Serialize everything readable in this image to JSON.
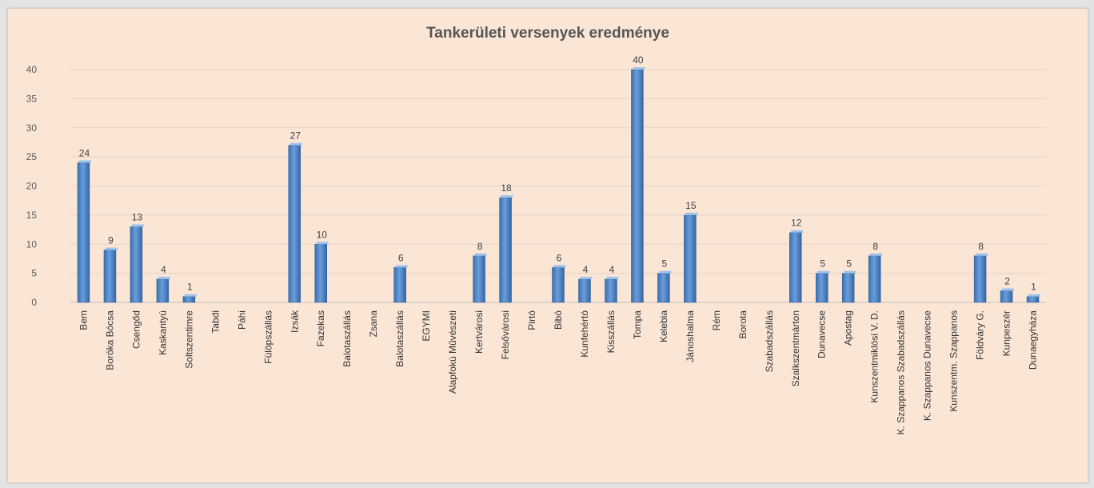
{
  "chart_data": {
    "type": "bar",
    "title": "Tankerületi versenyek eredménye",
    "xlabel": "",
    "ylabel": "",
    "ylim": [
      0,
      40
    ],
    "yticks": [
      0,
      5,
      10,
      15,
      20,
      25,
      30,
      35,
      40
    ],
    "grid": true,
    "legend": "none",
    "bar_color": "#4f86c6",
    "categories": [
      "Bem",
      "Boróka Bócsa",
      "Csengőd",
      "Kaskantyú",
      "Soltszentimre",
      "Tabdi",
      "Páhi",
      "Fülöpszállás",
      "Izsák",
      "Fazekas",
      "Balotaszállás",
      "Zsana",
      "Balotaszállás",
      "EGYMI",
      "Alapfokú Művészeti",
      "Kertvárosi",
      "Felsővárosi",
      "Pirtó",
      "Bibó",
      "Kunfehértó",
      "Kisszállás",
      "Tompa",
      "Kelebia",
      "Jánoshalma",
      "Rém",
      "Borota",
      "Szabadszállás",
      "Szalkszentmárton",
      "Dunavecse",
      "Apostag",
      "Kunszentmiklósi V. D.",
      "K. Szappanos Szabadszállás",
      "K. Szappanos Dunavecse",
      "Kunszentm. Szappanos",
      "Földváry G.",
      "Kunpeszér",
      "Dunaegyháza"
    ],
    "values": [
      24,
      9,
      13,
      4,
      1,
      0,
      0,
      0,
      27,
      10,
      0,
      0,
      6,
      0,
      0,
      8,
      18,
      0,
      6,
      4,
      4,
      40,
      5,
      15,
      0,
      0,
      0,
      12,
      5,
      5,
      8,
      0,
      0,
      0,
      8,
      2,
      1
    ]
  }
}
